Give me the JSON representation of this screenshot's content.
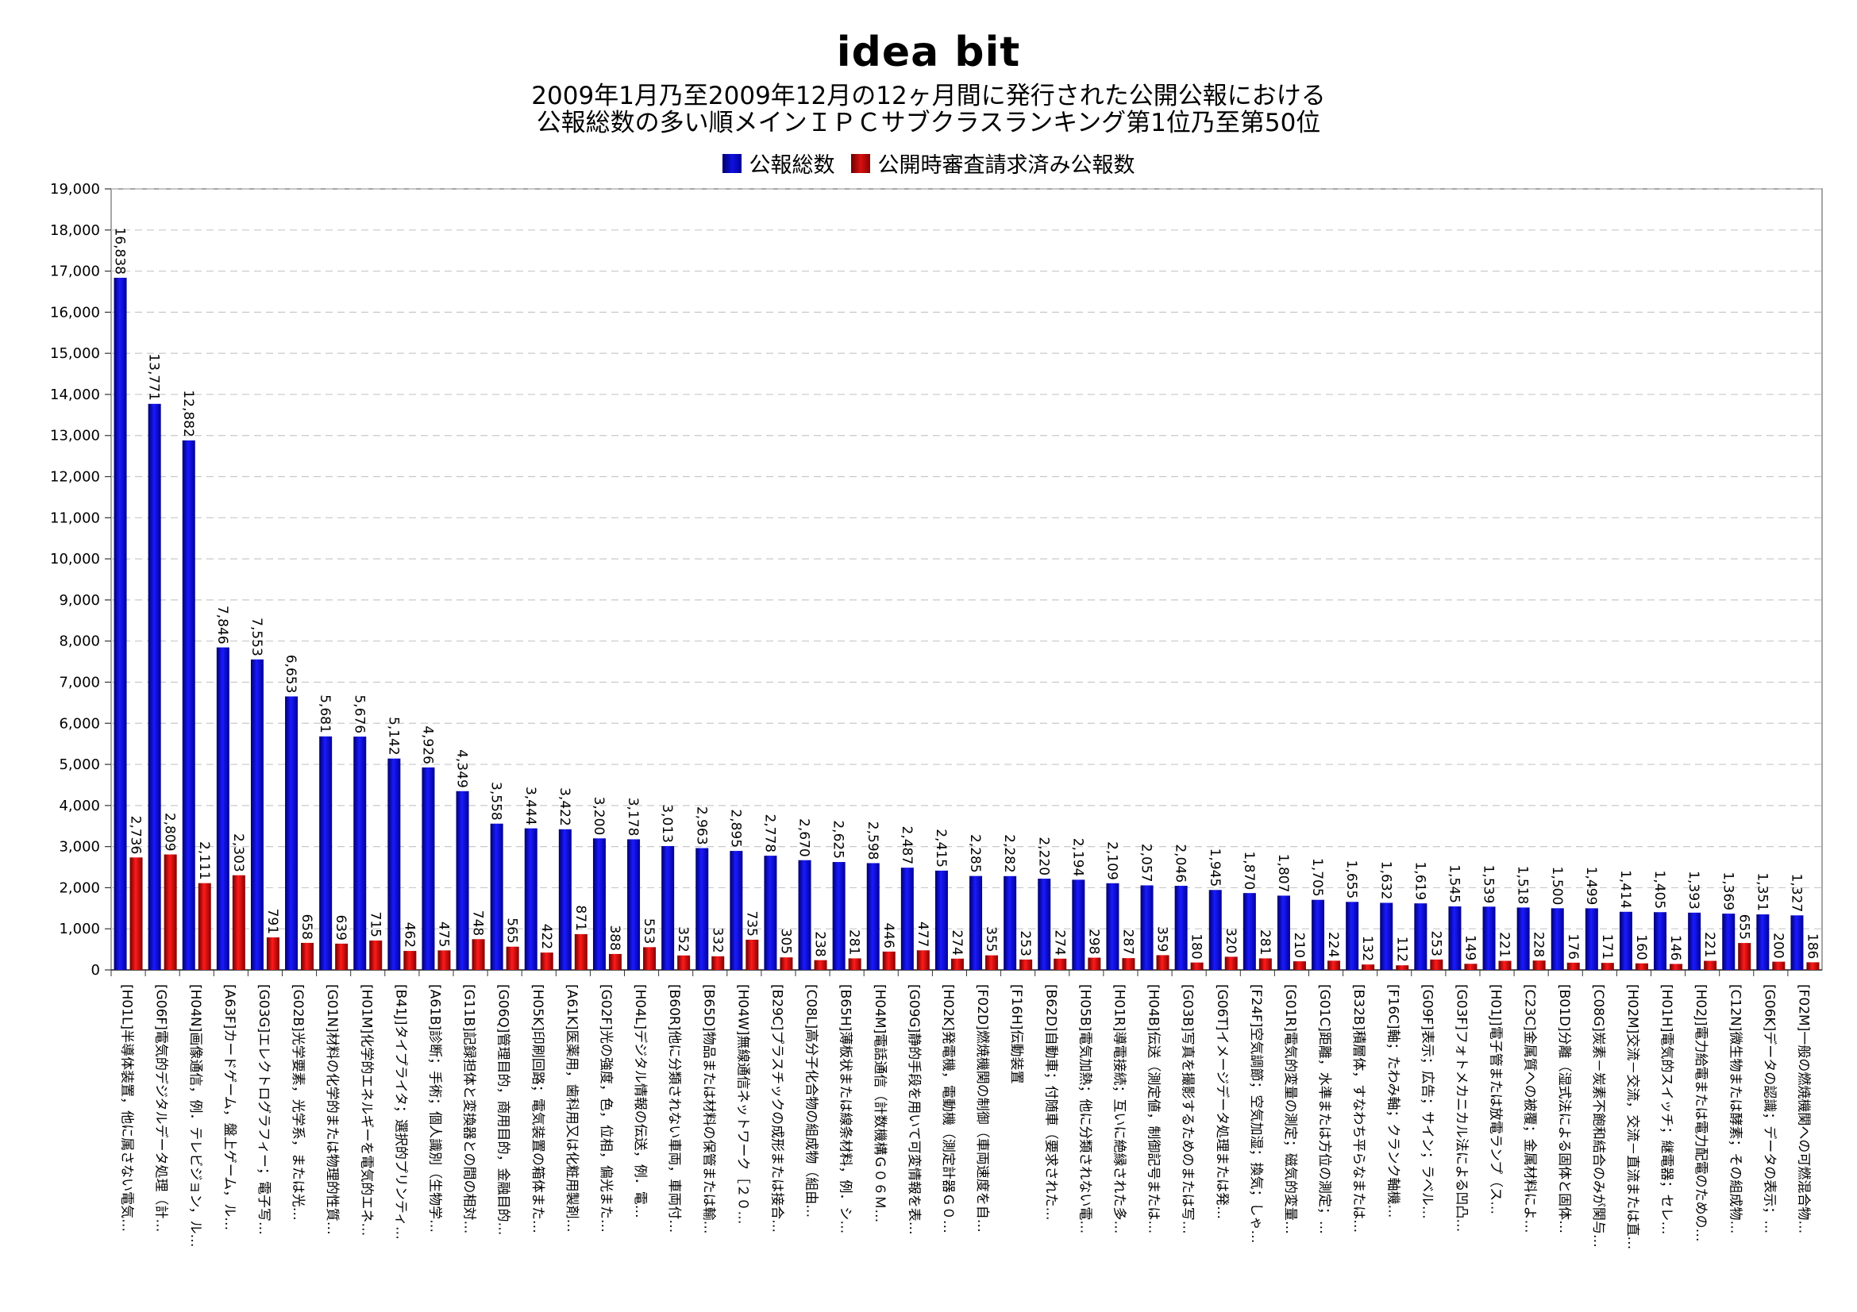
{
  "header": {
    "logo": "idea bit",
    "title_line1": "2009年1月乃至2009年12月の12ヶ月間に発行された公開公報における",
    "title_line2": "公報総数の多い順メインＩＰＣサブクラスランキング第1位乃至第50位"
  },
  "colors": {
    "series1": "#1010e0",
    "series2": "#d81010"
  },
  "chart_data": {
    "type": "bar",
    "title": "2009年1月乃至2009年12月の12ヶ月間に発行された公開公報における 公報総数の多い順メインＩＰＣサブクラスランキング第1位乃至第50位",
    "xlabel": "",
    "ylabel": "",
    "ylim": [
      0,
      19000
    ],
    "yticks": [
      "0",
      "1,000",
      "2,000",
      "3,000",
      "4,000",
      "5,000",
      "6,000",
      "7,000",
      "8,000",
      "9,000",
      "10,000",
      "11,000",
      "12,000",
      "13,000",
      "14,000",
      "15,000",
      "16,000",
      "17,000",
      "18,000",
      "19,000"
    ],
    "grid": true,
    "legend_position": "top",
    "categories": [
      "[H01L]半導体装置，他に属さない電気…",
      "[G06F]電気的デジタルデータ処理（計…",
      "[H04N]画像通信，例．テレビジョン，ル…",
      "[A63F]カードゲーム，盤上ゲーム，ル…",
      "[G03G]エレクトログラフィー；電子写…",
      "[G02B]光学要素，光学系，または光…",
      "[G01N]材料の化学的または物理的性質…",
      "[H01M]化学的エネルギーを電気的エネ…",
      "[B41J]タイプライタ；選択的プリンティ…",
      "[A61B]診断；手術；個人識別（生物学…",
      "[G11B]記録担体と変換器との間の相対…",
      "[G06Q]管理目的，商用目的，金融目的…",
      "[H05K]印刷回路；電気装置の箱体また…",
      "[A61K]医薬用，歯科用又は化粧用製剤…",
      "[G02F]光の強度，色，位相，偏光また…",
      "[H04L]デジタル情報の伝送，例．電…",
      "[B60R]他に分類されない車両，車両付…",
      "[B65D]物品または材料の保管または輸…",
      "[H04W]無線通信ネットワーク［２０…",
      "[B29C]プラスチックの成形または接合…",
      "[C08L]高分子化合物の組成物（組由…",
      "[B65H]薄板状または線条材料，例．シ…",
      "[H04M]電話通信（計数機構Ｇ０６Ｍ…",
      "[G09G]静的手段を用いて可変情報を表…",
      "[H02K]発電機，電動機（測定計器Ｇ０…",
      "[F02D]燃焼機関の制御（車両速度を自…",
      "[F16H]伝動装置",
      "[B62D]自動車；付随車（要求された…",
      "[H05B]電気加熱；他に分類されない電…",
      "[H01R]導電接続；互いに絶縁された多…",
      "[H04B]伝送（測定値，制御記号または…",
      "[G03B]写真を撮影するためのまたは写…",
      "[G06T]イメージデータ処理または発…",
      "[F24F]空気調節；空気加湿；換気；しゃ…",
      "[G01R]電気的変量の測定；磁気的変量…",
      "[G01C]距離，水準または方位の測定；…",
      "[B32B]積層体，すなわち平らなまたは…",
      "[F16C]軸；たわみ軸；クランク軸機…",
      "[G09F]表示；広告；サイン；ラベル…",
      "[G03F]フォトメカニカル法による凹凸…",
      "[H01J]電子管または放電ランプ（ス…",
      "[C23C]金属質への被覆；金属材料によ…",
      "[B01D]分離（湿式法による固体と固体…",
      "[C08G]炭素－炭素不飽和結合のみが関与…",
      "[H02M]交流－交流，交流－直流または直…",
      "[H01H]電気的スイッチ；継電器；セレ…",
      "[H02J]電力給電または電力配電のための…",
      "[C12N]微生物または酵素；その組成物…",
      "[G06K]データの認識；データの表示；…",
      "[F02M]一般の燃焼機関への可燃混合物…"
    ],
    "series": [
      {
        "name": "公報総数",
        "values": [
          16838,
          13771,
          12882,
          7846,
          7553,
          6653,
          5681,
          5676,
          5142,
          4926,
          4349,
          3558,
          3444,
          3422,
          3200,
          3178,
          3013,
          2963,
          2895,
          2778,
          2670,
          2625,
          2598,
          2487,
          2415,
          2285,
          2282,
          2220,
          2194,
          2109,
          2057,
          2046,
          1945,
          1870,
          1807,
          1705,
          1655,
          1632,
          1619,
          1545,
          1539,
          1518,
          1500,
          1499,
          1414,
          1405,
          1393,
          1369,
          1351,
          1327
        ],
        "labels": [
          "16,838",
          "13,771",
          "12,882",
          "7,846",
          "7,553",
          "6,653",
          "5,681",
          "5,676",
          "5,142",
          "4,926",
          "4,349",
          "3,558",
          "3,444",
          "3,422",
          "3,200",
          "3,178",
          "3,013",
          "2,963",
          "2,895",
          "2,778",
          "2,670",
          "2,625",
          "2,598",
          "2,487",
          "2,415",
          "2,285",
          "2,282",
          "2,220",
          "2,194",
          "2,109",
          "2,057",
          "2,046",
          "1,945",
          "1,870",
          "1,807",
          "1,705",
          "1,655",
          "1,632",
          "1,619",
          "1,545",
          "1,539",
          "1,518",
          "1,500",
          "1,499",
          "1,414",
          "1,405",
          "1,393",
          "1,369",
          "1,351",
          "1,327"
        ]
      },
      {
        "name": "公開時審査請求済み公報数",
        "values": [
          2736,
          2809,
          2111,
          2303,
          791,
          658,
          639,
          715,
          462,
          475,
          748,
          565,
          422,
          871,
          388,
          553,
          352,
          332,
          735,
          305,
          238,
          281,
          446,
          477,
          274,
          355,
          253,
          274,
          298,
          287,
          359,
          180,
          320,
          281,
          210,
          224,
          132,
          112,
          253,
          149,
          221,
          228,
          176,
          171,
          160,
          146,
          221,
          655,
          200,
          186
        ],
        "labels": [
          "2,736",
          "2,809",
          "2,111",
          "2,303",
          "791",
          "658",
          "639",
          "715",
          "462",
          "475",
          "748",
          "565",
          "422",
          "871",
          "388",
          "553",
          "352",
          "332",
          "735",
          "305",
          "238",
          "281",
          "446",
          "477",
          "274",
          "355",
          "253",
          "274",
          "298",
          "287",
          "359",
          "180",
          "320",
          "281",
          "210",
          "224",
          "132",
          "112",
          "253",
          "149",
          "221",
          "228",
          "176",
          "171",
          "160",
          "146",
          "221",
          "655",
          "200",
          "186"
        ]
      }
    ]
  }
}
